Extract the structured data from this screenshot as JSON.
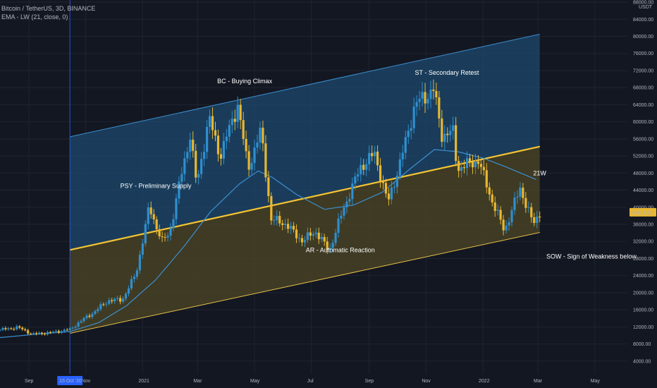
{
  "legend": {
    "symbol_line": "Bitcoin / TetherUS, 3D, BINANCE",
    "indicator_line": "EMA - LW (21, close, 0)"
  },
  "colors": {
    "background": "#131722",
    "upper_channel_fill": "#1e4a6e",
    "upper_channel_line": "#3d8fd1",
    "lower_channel_fill": "#4a4426",
    "mid_line": "#f5c434",
    "lower_line": "#e8c14a",
    "candle_up": "#2f8fcf",
    "candle_down": "#e8b732",
    "ema": "#3d8fd1",
    "crosshair": "#2962ff",
    "price_label_bg": "#e8b732"
  },
  "chart_data": {
    "type": "candlestick",
    "quote_unit": "USDT",
    "y_ticks": [
      4000,
      8000,
      12000,
      16000,
      20000,
      24000,
      28000,
      32000,
      36000,
      40000,
      44000,
      48000,
      52000,
      56000,
      60000,
      64000,
      68000,
      72000,
      76000,
      80000,
      84000,
      88000
    ],
    "y_tick_labels": [
      "4000.00",
      "8000.00",
      "12000.00",
      "16000.00",
      "20000.00",
      "24000.00",
      "28000.00",
      "32000.00",
      "36000.00",
      "40000.00",
      "44000.00",
      "48000.00",
      "52000.00",
      "56000.00",
      "60000.00",
      "64000.00",
      "68000.00",
      "72000.00",
      "76000.00",
      "80000.00",
      "84000.00",
      "88000.00"
    ],
    "ylim": [
      1000,
      88500
    ],
    "x_labels": [
      "Sep",
      "Nov",
      "2021",
      "Mar",
      "May",
      "Jul",
      "Sep",
      "Nov",
      "2022",
      "Mar",
      "May"
    ],
    "x_label_dates": [
      "2020-09-01",
      "2020-11-01",
      "2021-01-01",
      "2021-03-01",
      "2021-05-01",
      "2021-07-01",
      "2021-09-01",
      "2021-11-01",
      "2022-01-01",
      "2022-03-01",
      "2022-05-01"
    ],
    "x_range": [
      "2020-08-01",
      "2022-06-05"
    ],
    "crosshair_date_label": "15 Oct '20",
    "crosshair_date": "2020-10-15",
    "last_price_label": "38819.87",
    "last_price": 38819.87,
    "annotations": [
      {
        "text": "BC - Buying Climax",
        "date": "2021-03-22",
        "price": 69000
      },
      {
        "text": "ST - Secondary Retest",
        "date": "2021-10-20",
        "price": 71000
      },
      {
        "text": "PSY - Preliminary Supply",
        "date": "2020-12-08",
        "price": 44500
      },
      {
        "text": "21W",
        "date": "2022-02-24",
        "price": 47500
      },
      {
        "text": "AR - Automatic Reaction",
        "date": "2021-06-25",
        "price": 29500
      },
      {
        "text": "SOW - Sign of Weakness below",
        "date": "2022-03-10",
        "price": 28000
      }
    ],
    "channel": {
      "upper_line": {
        "start": [
          "2020-10-15",
          56500
        ],
        "end": [
          "2022-03-03",
          80500
        ]
      },
      "mid_line": {
        "start": [
          "2020-10-15",
          30000
        ],
        "end": [
          "2022-03-03",
          54200
        ]
      },
      "lower_line": {
        "start": [
          "2020-10-15",
          10500
        ],
        "end": [
          "2022-03-03",
          34100
        ]
      }
    },
    "ema_21w": [
      [
        "2020-08-01",
        9500
      ],
      [
        "2020-09-15",
        10400
      ],
      [
        "2020-10-15",
        10900
      ],
      [
        "2020-11-15",
        13000
      ],
      [
        "2020-12-15",
        17000
      ],
      [
        "2021-01-15",
        23000
      ],
      [
        "2021-02-15",
        31000
      ],
      [
        "2021-03-15",
        39000
      ],
      [
        "2021-04-15",
        45500
      ],
      [
        "2021-05-05",
        48500
      ],
      [
        "2021-05-20",
        47000
      ],
      [
        "2021-06-15",
        43000
      ],
      [
        "2021-07-15",
        39500
      ],
      [
        "2021-08-15",
        40500
      ],
      [
        "2021-09-15",
        43500
      ],
      [
        "2021-10-15",
        49000
      ],
      [
        "2021-11-10",
        53500
      ],
      [
        "2021-12-05",
        53000
      ],
      [
        "2022-01-01",
        51500
      ],
      [
        "2022-01-25",
        49500
      ],
      [
        "2022-02-27",
        46500
      ]
    ],
    "price_path": [
      [
        "2020-08-01",
        11300
      ],
      [
        "2020-08-20",
        11900
      ],
      [
        "2020-09-05",
        10300
      ],
      [
        "2020-09-25",
        10700
      ],
      [
        "2020-10-15",
        11400
      ],
      [
        "2020-10-25",
        13100
      ],
      [
        "2020-11-10",
        15500
      ],
      [
        "2020-11-25",
        18200
      ],
      [
        "2020-12-10",
        18300
      ],
      [
        "2020-12-25",
        24500
      ],
      [
        "2021-01-08",
        40000
      ],
      [
        "2021-01-22",
        32000
      ],
      [
        "2021-01-30",
        34000
      ],
      [
        "2021-02-10",
        46000
      ],
      [
        "2021-02-21",
        57000
      ],
      [
        "2021-02-28",
        45000
      ],
      [
        "2021-03-13",
        61000
      ],
      [
        "2021-03-25",
        52000
      ],
      [
        "2021-04-13",
        64000
      ],
      [
        "2021-04-24",
        49000
      ],
      [
        "2021-05-08",
        58000
      ],
      [
        "2021-05-19",
        37000
      ],
      [
        "2021-06-01",
        36500
      ],
      [
        "2021-06-22",
        32000
      ],
      [
        "2021-07-05",
        34500
      ],
      [
        "2021-07-20",
        29800
      ],
      [
        "2021-08-05",
        40000
      ],
      [
        "2021-08-23",
        49500
      ],
      [
        "2021-09-07",
        52500
      ],
      [
        "2021-09-21",
        41000
      ],
      [
        "2021-10-05",
        51000
      ],
      [
        "2021-10-20",
        64000
      ],
      [
        "2021-11-09",
        67500
      ],
      [
        "2021-11-18",
        57000
      ],
      [
        "2021-12-01",
        57500
      ],
      [
        "2021-12-04",
        49000
      ],
      [
        "2021-12-27",
        51000
      ],
      [
        "2022-01-10",
        42000
      ],
      [
        "2022-01-24",
        34500
      ],
      [
        "2022-02-10",
        44500
      ],
      [
        "2022-02-24",
        36000
      ],
      [
        "2022-03-03",
        38820
      ]
    ]
  }
}
